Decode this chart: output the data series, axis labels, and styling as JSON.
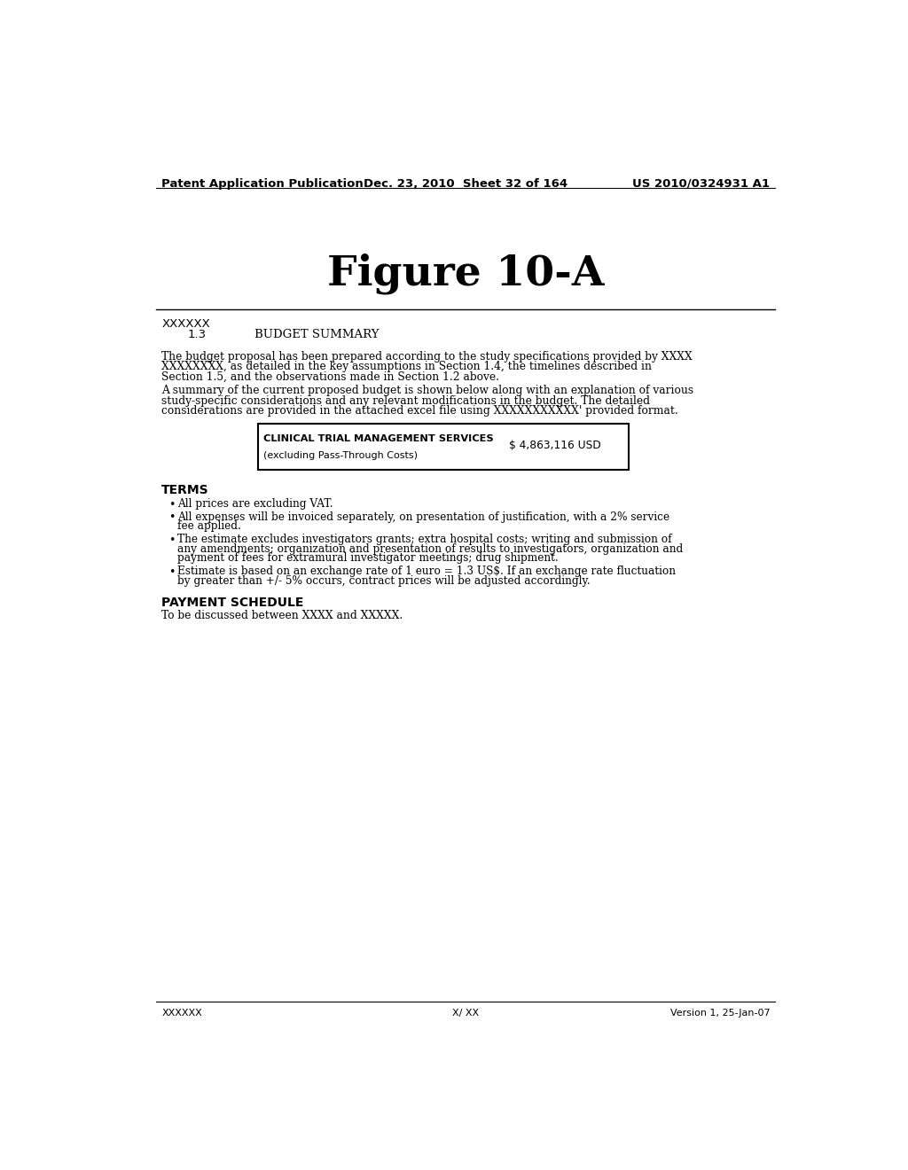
{
  "header_left": "Patent Application Publication",
  "header_middle": "Dec. 23, 2010  Sheet 32 of 164",
  "header_right": "US 2010/0324931 A1",
  "figure_title": "Figure 10-A",
  "section_label": "XXXXXX",
  "section_number": "1.3",
  "section_title": "BUDGET SUMMARY",
  "para1_lines": [
    "The budget proposal has been prepared according to the study specifications provided by XXXX",
    "XXXXXXXX, as detailed in the key assumptions in Section 1.4, the timelines described in",
    "Section 1.5, and the observations made in Section 1.2 above."
  ],
  "para2_lines": [
    "A summary of the current proposed budget is shown below along with an explanation of various",
    "study-specific considerations and any relevant modifications in the budget. The detailed",
    "considerations are provided in the attached excel file using XXXXXXXXXXX' provided format."
  ],
  "table_label1": "CLINICAL TRIAL MANAGEMENT SERVICES",
  "table_label2": "(excluding Pass-Through Costs)",
  "table_value": "$ 4,863,116 USD",
  "terms_title": "TERMS",
  "bullet_lines": [
    [
      "All prices are excluding VAT."
    ],
    [
      "All expenses will be invoiced separately, on presentation of justification, with a 2% service",
      "fee applied."
    ],
    [
      "The estimate excludes investigators grants; extra hospital costs; writing and submission of",
      "any amendments; organization and presentation of results to investigators, organization and",
      "payment of fees for extramural investigator meetings; drug shipment."
    ],
    [
      "Estimate is based on an exchange rate of 1 euro = 1.3 US$. If an exchange rate fluctuation",
      "by greater than +/- 5% occurs, contract prices will be adjusted accordingly."
    ]
  ],
  "payment_title": "PAYMENT SCHEDULE",
  "payment_text": "To be discussed between XXXX and XXXXX.",
  "footer_left": "XXXXXX",
  "footer_middle": "X/ XX",
  "footer_right": "Version 1, 25-Jan-07",
  "bg_color": "#ffffff",
  "text_color": "#000000"
}
